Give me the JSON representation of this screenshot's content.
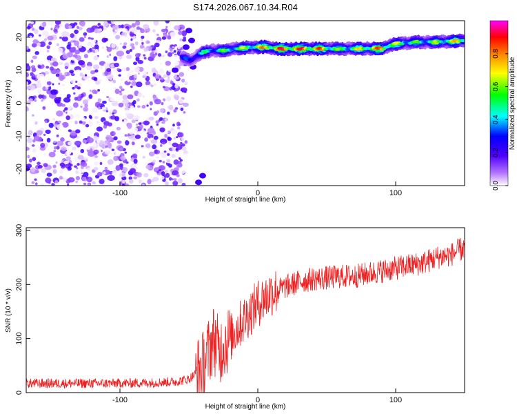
{
  "title": "S174.2026.067.10.34.R04",
  "chart_data": [
    {
      "type": "heatmap",
      "xlabel": "Height of straight line (km)",
      "ylabel": "Frequency (Hz)",
      "xlim": [
        -168,
        150
      ],
      "ylim": [
        -25,
        25
      ],
      "xticks": [
        -100,
        0,
        100
      ],
      "yticks": [
        -20,
        -10,
        0,
        10,
        20
      ],
      "colorbar": {
        "label": "Normalized spectral amplitude",
        "range": [
          0,
          1
        ],
        "ticks": [
          "0.0",
          "0.2",
          "0.4",
          "0.6",
          "0.8"
        ],
        "colormap": [
          "#ffffff",
          "#7f00ff",
          "#0000ff",
          "#00ffff",
          "#00ff00",
          "#ffff00",
          "#ff7f00",
          "#ff0000",
          "#ff00ff"
        ]
      },
      "noise_region_x": [
        -168,
        -52
      ],
      "ridge": {
        "x": [
          -55,
          -48,
          -40,
          -32,
          -25,
          -15,
          -5,
          5,
          15,
          30,
          45,
          60,
          75,
          90,
          100,
          115,
          130,
          150
        ],
        "freq": [
          14,
          13,
          15.5,
          16,
          16,
          16.5,
          17,
          17,
          16.5,
          16.5,
          16.5,
          16.5,
          16.5,
          16.5,
          18,
          18.5,
          18.5,
          19
        ],
        "amplitude": [
          0.3,
          0.4,
          0.5,
          0.55,
          0.6,
          0.65,
          0.7,
          0.85,
          0.95,
          0.95,
          0.9,
          0.6,
          0.75,
          0.9,
          0.7,
          0.6,
          0.65,
          0.85
        ]
      }
    },
    {
      "type": "line",
      "xlabel": "Height of straight line (km)",
      "ylabel": "SNR (10 * v/v)",
      "xlim": [
        -168,
        150
      ],
      "ylim": [
        0,
        305
      ],
      "xticks": [
        -100,
        0,
        100
      ],
      "yticks": [
        0,
        100,
        200,
        300
      ],
      "color": "#ee2222",
      "x": [
        -168,
        -140,
        -110,
        -80,
        -60,
        -50,
        -45,
        -40,
        -35,
        -32,
        -28,
        -25,
        -20,
        -15,
        -10,
        -5,
        0,
        5,
        10,
        15,
        20,
        30,
        40,
        50,
        60,
        70,
        80,
        90,
        100,
        110,
        120,
        130,
        140,
        150
      ],
      "values": [
        17,
        17,
        17,
        18,
        20,
        25,
        35,
        50,
        80,
        100,
        75,
        90,
        100,
        120,
        135,
        150,
        165,
        175,
        185,
        190,
        195,
        205,
        210,
        212,
        215,
        215,
        220,
        225,
        230,
        235,
        240,
        250,
        255,
        268
      ]
    }
  ]
}
